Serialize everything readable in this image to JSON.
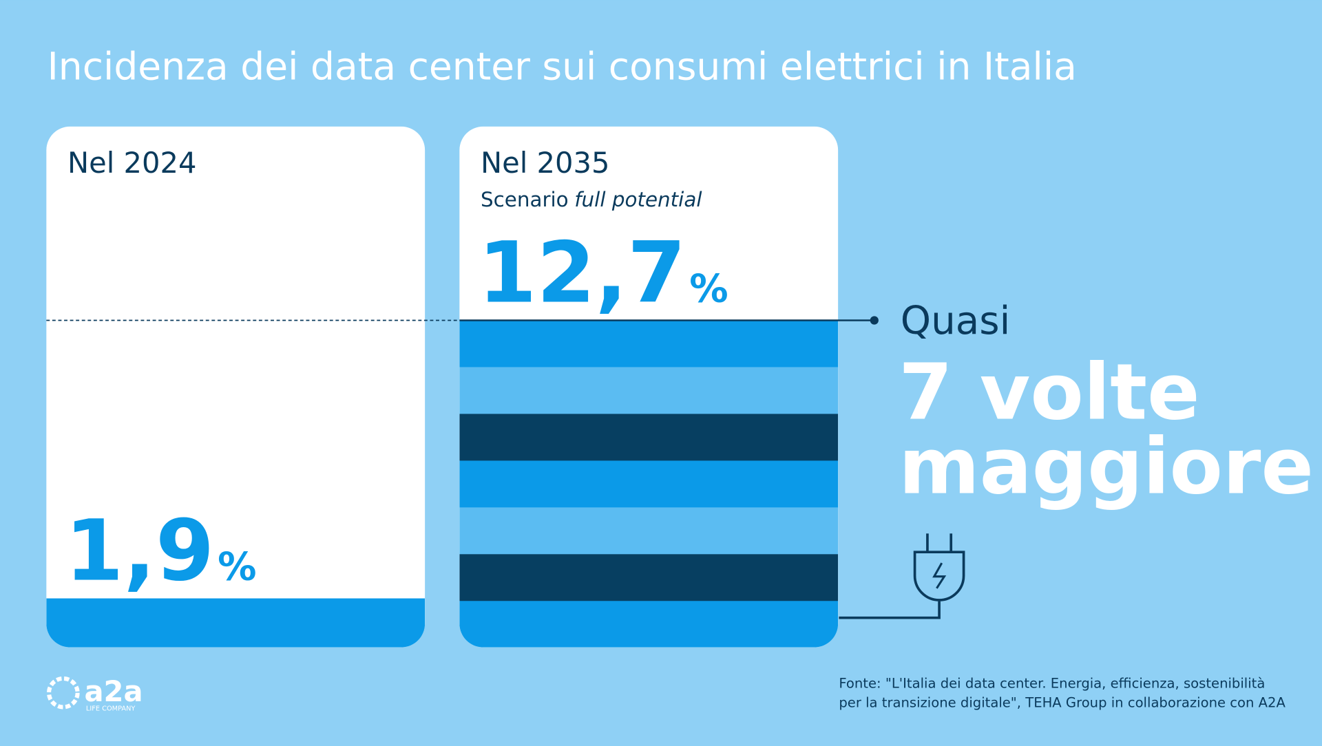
{
  "chart_data": {
    "type": "bar",
    "title": "Incidenza dei data center sui consumi elettrici in Italia",
    "categories": [
      "Nel 2024",
      "Nel 2035"
    ],
    "values": [
      1.9,
      12.7
    ],
    "value_labels": [
      "1,9",
      "12,7"
    ],
    "value_unit": "%",
    "scenario": "Scenario",
    "scenario_emphasis": "full potential",
    "color": "#0b9ae8",
    "stripe_colors": [
      "#0b9ae8",
      "#5bbcf2",
      "#073f61"
    ],
    "annotation": {
      "lead": "Quasi",
      "line1": "7 volte",
      "line2": "maggiore"
    },
    "source": [
      "Fonte: \"L'Italia dei data center. Energia, efficienza, sostenibilità",
      "per la transizione digitale\", TEHA Group in collaborazione con A2A"
    ],
    "logo": {
      "name": "a2a",
      "tagline": "LIFE COMPANY"
    }
  }
}
